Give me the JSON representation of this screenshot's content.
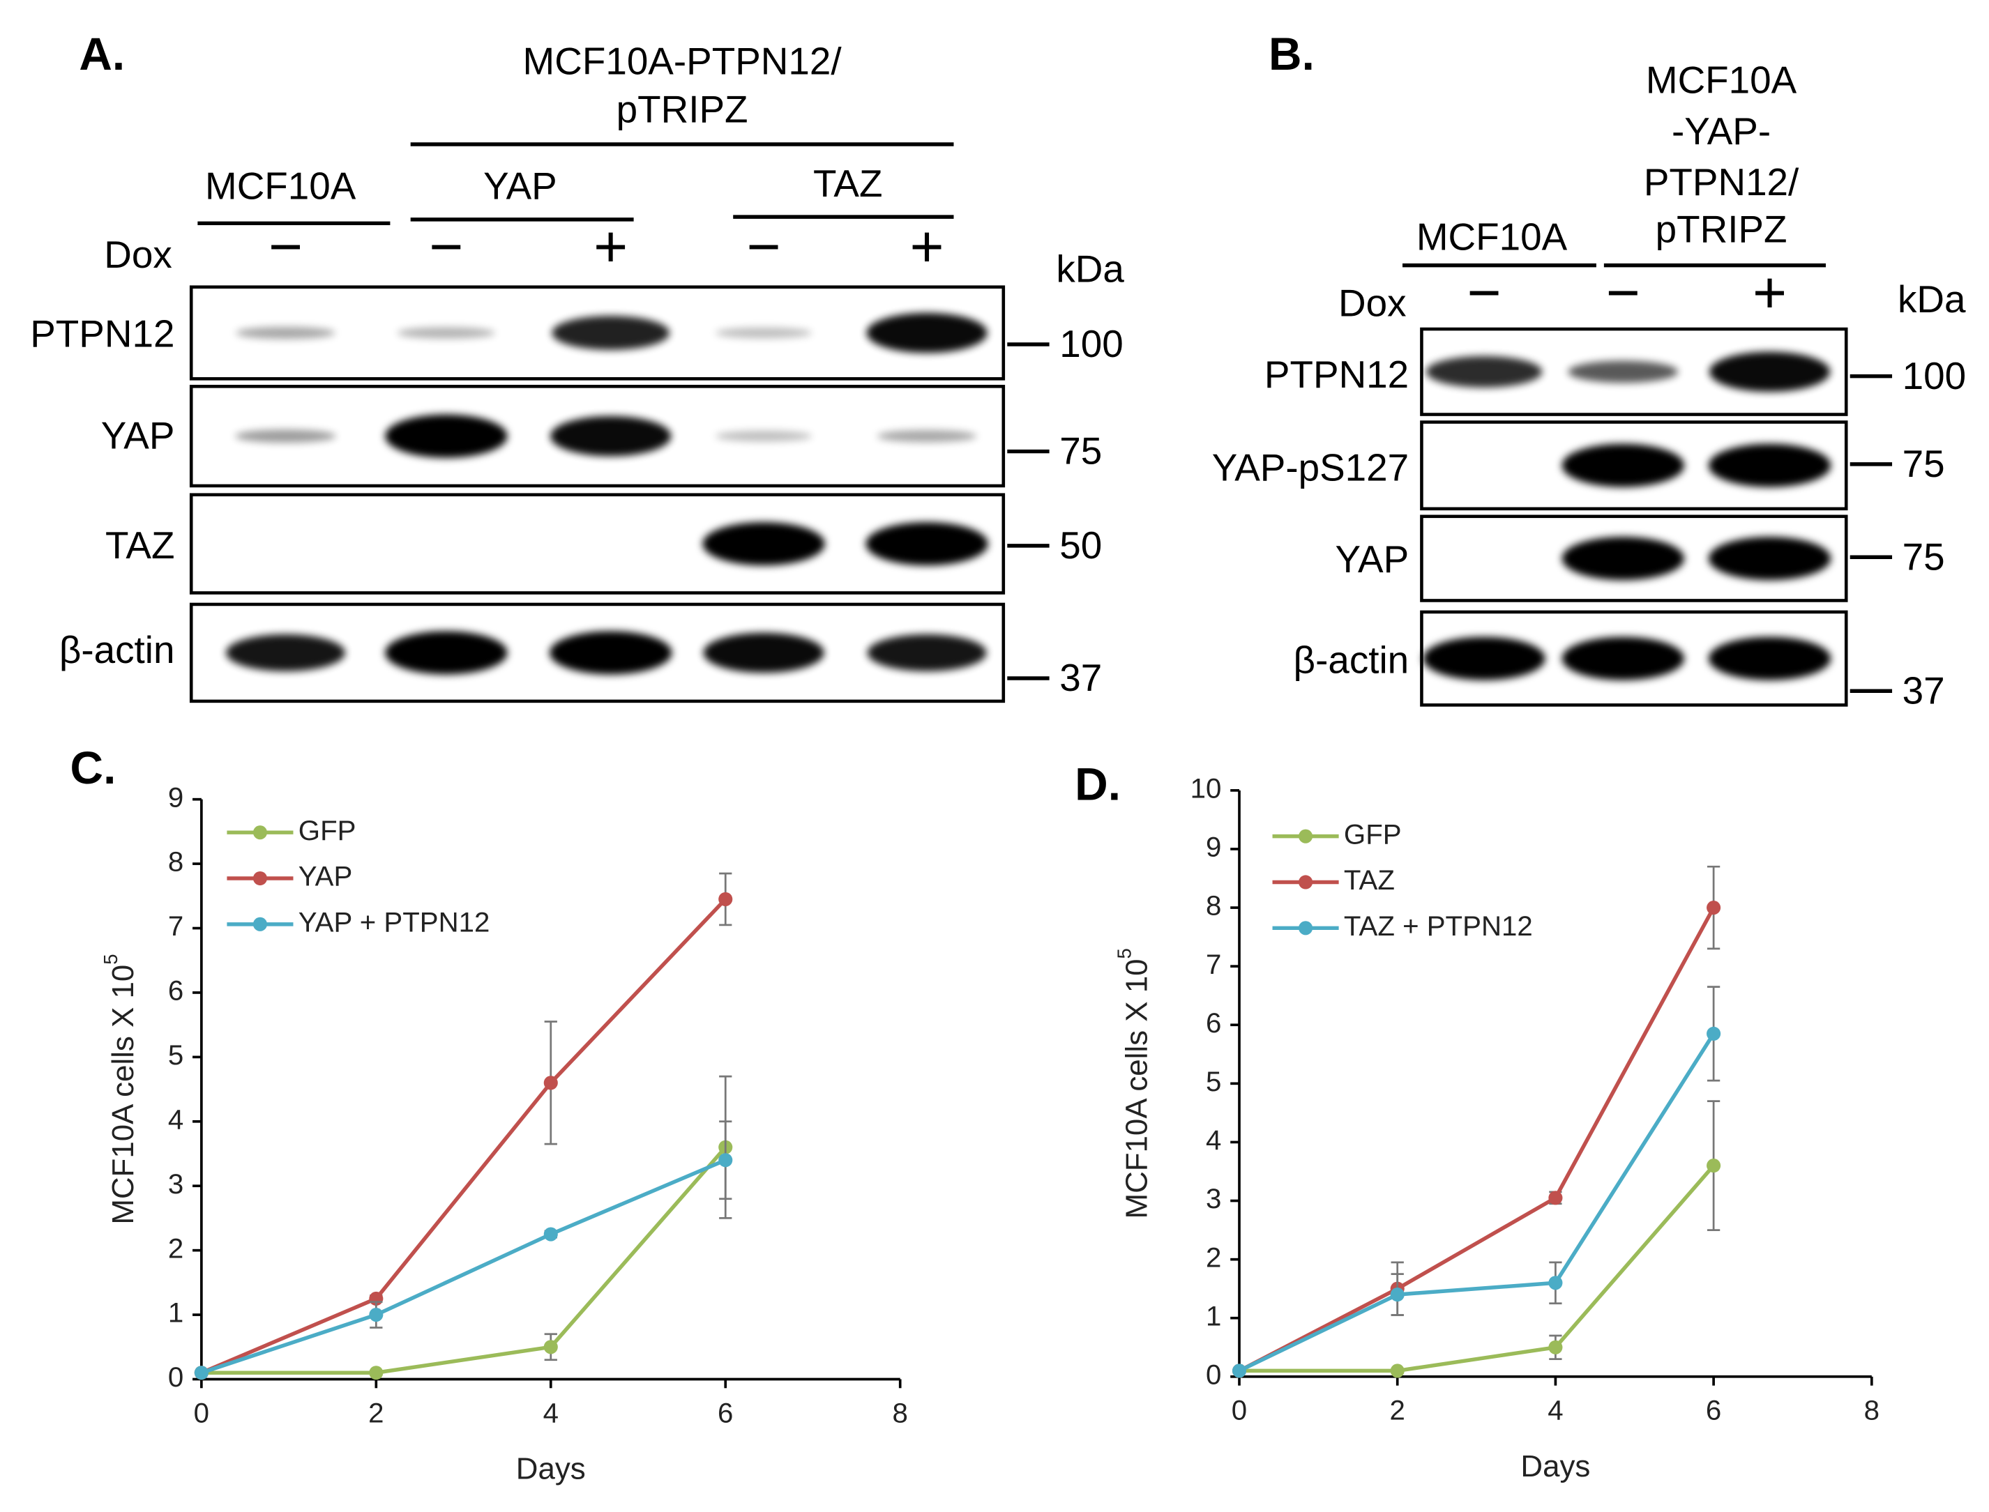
{
  "panel_a": {
    "label": "A.",
    "header": [
      "MCF10A-PTPN12/",
      "pTRIPZ"
    ],
    "groups": [
      "MCF10A",
      "YAP",
      "TAZ"
    ],
    "dox_label": "Dox",
    "dox": [
      "−",
      "−",
      "+",
      "−",
      "+"
    ],
    "kda_label": "kDa",
    "rows": [
      "PTPN12",
      "YAP",
      "TAZ",
      "β-actin"
    ],
    "markers": [
      100,
      75,
      50,
      37
    ]
  },
  "panel_b": {
    "label": "B.",
    "groups": [
      "MCF10A"
    ],
    "header": [
      "MCF10A",
      "-YAP-",
      "PTPN12/",
      "pTRIPZ"
    ],
    "dox_label": "Dox",
    "dox": [
      "−",
      "−",
      "+"
    ],
    "kda_label": "kDa",
    "rows": [
      "PTPN12",
      "YAP-pS127",
      "YAP",
      "β-actin"
    ],
    "markers": [
      100,
      75,
      75,
      37
    ]
  },
  "chart_data": [
    {
      "type": "line",
      "label": "C.",
      "y_label": "MCF10A cells X 10",
      "y_label_exponent": "5",
      "x_label": "Days",
      "x": [
        0,
        2,
        4,
        6
      ],
      "xlim": [
        0,
        8
      ],
      "xticks": [
        0,
        2,
        4,
        6,
        8
      ],
      "ylim": [
        0,
        9
      ],
      "yticks": [
        0,
        1,
        2,
        3,
        4,
        5,
        6,
        7,
        8,
        9
      ],
      "series": [
        {
          "name": "GFP",
          "color": "#9bbb59",
          "values": [
            0.1,
            0.1,
            0.5,
            3.6
          ],
          "errors": [
            0,
            0,
            0.2,
            1.1
          ]
        },
        {
          "name": "YAP",
          "color": "#c0504d",
          "values": [
            0.1,
            1.25,
            4.6,
            7.45
          ],
          "errors": [
            0,
            0.05,
            0.95,
            0.4
          ]
        },
        {
          "name": "YAP + PTPN12",
          "color": "#4bacc6",
          "values": [
            0.1,
            1.0,
            2.25,
            3.4
          ],
          "errors": [
            0,
            0.2,
            0.05,
            0.6
          ]
        }
      ]
    },
    {
      "type": "line",
      "label": "D.",
      "y_label": "MCF10A cells X 10",
      "y_label_exponent": "5",
      "x_label": "Days",
      "x": [
        0,
        2,
        4,
        6
      ],
      "xlim": [
        0,
        8
      ],
      "xticks": [
        0,
        2,
        4,
        6,
        8
      ],
      "ylim": [
        0,
        10
      ],
      "yticks": [
        0,
        1,
        2,
        3,
        4,
        5,
        6,
        7,
        8,
        9,
        10
      ],
      "series": [
        {
          "name": "GFP",
          "color": "#9bbb59",
          "values": [
            0.1,
            0.1,
            0.5,
            3.6
          ],
          "errors": [
            0,
            0,
            0.2,
            1.1
          ]
        },
        {
          "name": "TAZ",
          "color": "#c0504d",
          "values": [
            0.1,
            1.5,
            3.05,
            8.0
          ],
          "errors": [
            0,
            0.45,
            0.1,
            0.7
          ]
        },
        {
          "name": "TAZ + PTPN12",
          "color": "#4bacc6",
          "values": [
            0.1,
            1.4,
            1.6,
            5.85
          ],
          "errors": [
            0,
            0.35,
            0.35,
            0.8
          ]
        }
      ]
    }
  ]
}
